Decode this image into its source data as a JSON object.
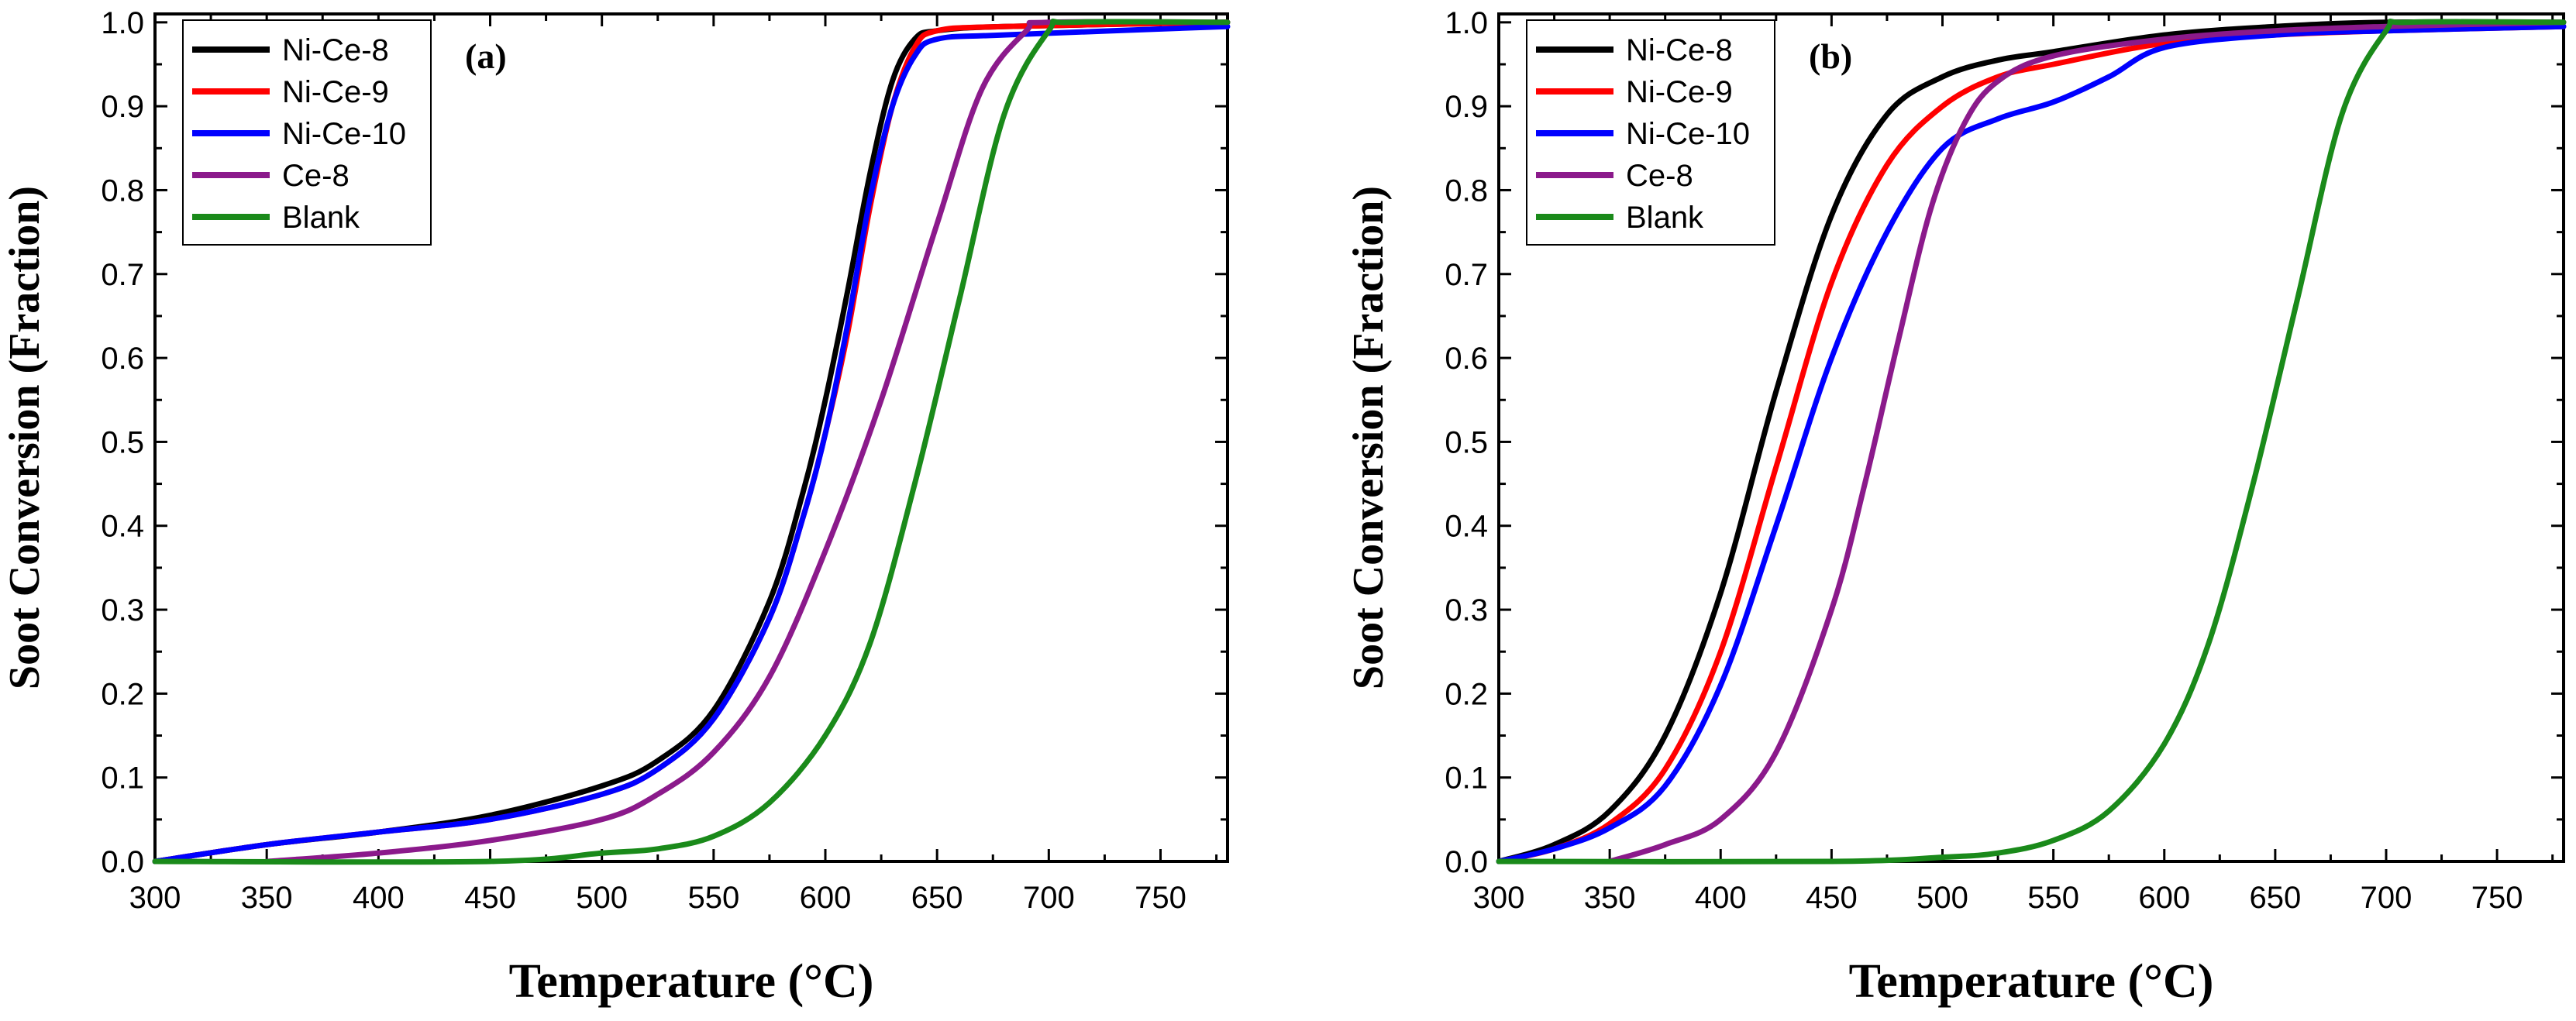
{
  "chart_data": [
    {
      "type": "line",
      "panel_label": "(a)",
      "xlabel": "Temperature (°C)",
      "ylabel": "Soot Conversion (Fraction)",
      "xlim": [
        300,
        780
      ],
      "ylim": [
        0,
        1.01
      ],
      "xticks": [
        300,
        350,
        400,
        450,
        500,
        550,
        600,
        650,
        700,
        750
      ],
      "yticks": [
        0.0,
        0.1,
        0.2,
        0.3,
        0.4,
        0.5,
        0.6,
        0.7,
        0.8,
        0.9,
        1.0
      ],
      "tick_labels_x": [
        "300",
        "350",
        "400",
        "450",
        "500",
        "550",
        "600",
        "650",
        "700",
        "750"
      ],
      "tick_labels_y": [
        "0.0",
        "0.1",
        "0.2",
        "0.3",
        "0.4",
        "0.5",
        "0.6",
        "0.7",
        "0.8",
        "0.9",
        "1.0"
      ],
      "legend_position": "top-left",
      "series": [
        {
          "name": "Ni-Ce-8",
          "color": "#000000",
          "x": [
            300,
            350,
            400,
            450,
            500,
            525,
            550,
            575,
            590,
            600,
            610,
            620,
            630,
            640,
            650,
            680,
            780
          ],
          "y": [
            0.0,
            0.02,
            0.035,
            0.055,
            0.09,
            0.12,
            0.18,
            0.31,
            0.44,
            0.55,
            0.68,
            0.82,
            0.93,
            0.98,
            0.99,
            0.995,
            1.0
          ]
        },
        {
          "name": "Ni-Ce-9",
          "color": "#ff0000",
          "x": [
            300,
            350,
            400,
            450,
            500,
            525,
            550,
            575,
            590,
            600,
            610,
            620,
            630,
            640,
            650,
            680,
            780
          ],
          "y": [
            0.0,
            0.02,
            0.035,
            0.05,
            0.08,
            0.11,
            0.17,
            0.29,
            0.41,
            0.51,
            0.63,
            0.78,
            0.9,
            0.97,
            0.99,
            0.995,
            1.0
          ]
        },
        {
          "name": "Ni-Ce-10",
          "color": "#0000ff",
          "x": [
            300,
            350,
            400,
            450,
            500,
            525,
            550,
            575,
            590,
            600,
            610,
            620,
            630,
            640,
            650,
            680,
            780
          ],
          "y": [
            0.0,
            0.02,
            0.035,
            0.05,
            0.08,
            0.11,
            0.17,
            0.29,
            0.41,
            0.51,
            0.64,
            0.79,
            0.9,
            0.96,
            0.98,
            0.985,
            0.995
          ]
        },
        {
          "name": "Ce-8",
          "color": "#8b1a8b",
          "x": [
            350,
            400,
            450,
            500,
            525,
            550,
            575,
            600,
            625,
            650,
            670,
            690,
            700,
            780
          ],
          "y": [
            0.0,
            0.01,
            0.025,
            0.05,
            0.08,
            0.13,
            0.22,
            0.37,
            0.55,
            0.76,
            0.92,
            0.99,
            1.0,
            1.0
          ]
        },
        {
          "name": "Blank",
          "color": "#1a8a1a",
          "x": [
            300,
            450,
            500,
            525,
            550,
            575,
            600,
            620,
            640,
            660,
            680,
            700,
            710,
            780
          ],
          "y": [
            0.0,
            0.0,
            0.01,
            0.015,
            0.03,
            0.07,
            0.15,
            0.26,
            0.45,
            0.67,
            0.89,
            0.99,
            1.0,
            1.0
          ]
        }
      ]
    },
    {
      "type": "line",
      "panel_label": "(b)",
      "xlabel": "Temperature (°C)",
      "ylabel": "Soot Conversion (Fraction)",
      "xlim": [
        300,
        780
      ],
      "ylim": [
        0,
        1.01
      ],
      "xticks": [
        300,
        350,
        400,
        450,
        500,
        550,
        600,
        650,
        700,
        750
      ],
      "yticks": [
        0.0,
        0.1,
        0.2,
        0.3,
        0.4,
        0.5,
        0.6,
        0.7,
        0.8,
        0.9,
        1.0
      ],
      "tick_labels_x": [
        "300",
        "350",
        "400",
        "450",
        "500",
        "550",
        "600",
        "650",
        "700",
        "750"
      ],
      "tick_labels_y": [
        "0.0",
        "0.1",
        "0.2",
        "0.3",
        "0.4",
        "0.5",
        "0.6",
        "0.7",
        "0.8",
        "0.9",
        "1.0"
      ],
      "legend_position": "top-left",
      "series": [
        {
          "name": "Ni-Ce-8",
          "color": "#000000",
          "x": [
            300,
            325,
            350,
            375,
            400,
            425,
            450,
            475,
            500,
            525,
            550,
            600,
            650,
            700,
            780
          ],
          "y": [
            0.0,
            0.02,
            0.06,
            0.15,
            0.32,
            0.56,
            0.77,
            0.89,
            0.935,
            0.955,
            0.965,
            0.985,
            0.995,
            1.0,
            1.0
          ]
        },
        {
          "name": "Ni-Ce-9",
          "color": "#ff0000",
          "x": [
            300,
            325,
            350,
            375,
            400,
            425,
            450,
            475,
            500,
            525,
            550,
            600,
            650,
            700,
            780
          ],
          "y": [
            0.0,
            0.015,
            0.045,
            0.11,
            0.25,
            0.47,
            0.69,
            0.83,
            0.9,
            0.935,
            0.95,
            0.975,
            0.985,
            0.99,
            0.995
          ]
        },
        {
          "name": "Ni-Ce-10",
          "color": "#0000ff",
          "x": [
            300,
            325,
            350,
            375,
            400,
            425,
            450,
            475,
            500,
            525,
            550,
            575,
            600,
            650,
            700,
            780
          ],
          "y": [
            0.0,
            0.015,
            0.04,
            0.09,
            0.21,
            0.4,
            0.6,
            0.75,
            0.85,
            0.885,
            0.905,
            0.935,
            0.97,
            0.985,
            0.99,
            0.995
          ]
        },
        {
          "name": "Ce-8",
          "color": "#8b1a8b",
          "x": [
            350,
            375,
            400,
            425,
            450,
            465,
            480,
            495,
            510,
            525,
            550,
            600,
            650,
            700,
            780
          ],
          "y": [
            0.0,
            0.02,
            0.05,
            0.13,
            0.3,
            0.45,
            0.62,
            0.78,
            0.88,
            0.93,
            0.96,
            0.98,
            0.99,
            0.995,
            1.0
          ]
        },
        {
          "name": "Blank",
          "color": "#1a8a1a",
          "x": [
            300,
            450,
            500,
            525,
            550,
            575,
            600,
            620,
            640,
            660,
            680,
            700,
            710,
            780
          ],
          "y": [
            0.0,
            0.0,
            0.005,
            0.01,
            0.025,
            0.06,
            0.14,
            0.26,
            0.45,
            0.67,
            0.89,
            0.99,
            1.0,
            1.0
          ]
        }
      ]
    }
  ]
}
